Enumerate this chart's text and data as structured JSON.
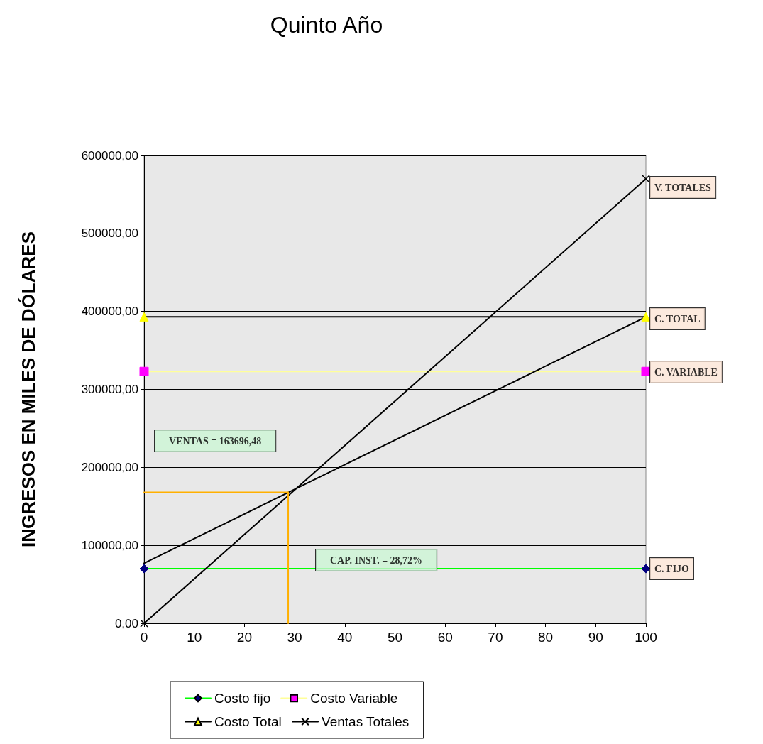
{
  "chart_data": {
    "type": "line",
    "title": "Quinto Año",
    "ylabel": "INGRESOS EN MILES DE DÓLARES",
    "xlim": [
      0,
      100
    ],
    "xticks": [
      0,
      10,
      20,
      30,
      40,
      50,
      60,
      70,
      80,
      90,
      100
    ],
    "ylim": [
      0,
      600000
    ],
    "yticks": [
      {
        "value": 0,
        "label": "0,00"
      },
      {
        "value": 100000,
        "label": "100000,00"
      },
      {
        "value": 200000,
        "label": "200000,00"
      },
      {
        "value": 300000,
        "label": "300000,00"
      },
      {
        "value": 400000,
        "label": "400000,00"
      },
      {
        "value": 500000,
        "label": "500000,00"
      },
      {
        "value": 600000,
        "label": "600000,00"
      }
    ],
    "grid": "y",
    "legend": "bottom",
    "series": [
      {
        "name": "Costo fijo",
        "color": "#00ff00",
        "colors": [
          "#000080",
          "#000080"
        ],
        "marker": "diamond",
        "x": [
          0,
          100
        ],
        "values": [
          70000,
          70000
        ]
      },
      {
        "name": "Costo Variable",
        "color": "#ffff99",
        "colors": [
          "#ff00ff",
          "#ff00ff"
        ],
        "marker": "square",
        "x": [
          0,
          100
        ],
        "values": [
          323000,
          323000
        ]
      },
      {
        "name": "Costo Total",
        "color": "#000000",
        "colors": [
          "#ffff00",
          "#ffff00"
        ],
        "marker": "triangle",
        "x": [
          0,
          100
        ],
        "values": [
          393000,
          393000
        ]
      },
      {
        "name": "Ventas Totales",
        "color": "#000000",
        "colors": [
          "#000000",
          "#000000"
        ],
        "marker": "cross",
        "x": [
          0,
          100
        ],
        "values": [
          0,
          570000
        ]
      },
      {
        "color": "#000000",
        "marker": "none",
        "x": [
          0,
          100
        ],
        "values": [
          77000,
          393000
        ]
      },
      {
        "color": "#ffb000",
        "marker": "none",
        "x": [
          0,
          28.72
        ],
        "values": [
          168000,
          168000
        ]
      },
      {
        "color": "#ffb000",
        "marker": "none",
        "x": [
          28.72,
          28.72
        ],
        "values": [
          168000,
          0
        ]
      }
    ],
    "annotations": [
      "V. TOTALES",
      "C. TOTAL",
      "C. VARIABLE",
      "C. FIJO",
      "VENTAS = 163696,48",
      "CAP. INST. = 28,72%"
    ]
  }
}
